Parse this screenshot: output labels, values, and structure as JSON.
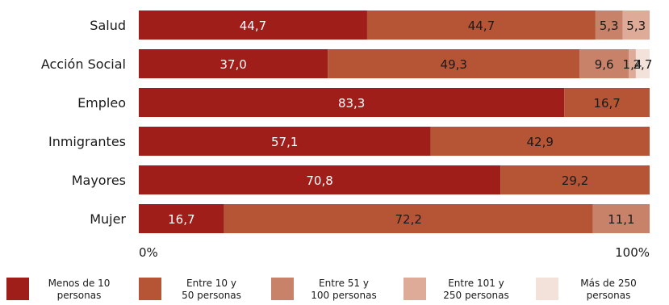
{
  "chart_data": {
    "type": "bar",
    "orientation": "horizontal",
    "stacked": true,
    "categories": [
      "Salud",
      "Acción Social",
      "Empleo",
      "Inmigrantes",
      "Mayores",
      "Mujer"
    ],
    "series": [
      {
        "name": "Menos de 10 personas",
        "color": "#a01e1a",
        "values": [
          44.7,
          37.0,
          83.3,
          57.1,
          70.8,
          16.7
        ]
      },
      {
        "name": "Entre 10 y 50 personas",
        "color": "#b55535",
        "values": [
          44.7,
          49.3,
          16.7,
          42.9,
          29.2,
          72.2
        ]
      },
      {
        "name": "Entre 51 y 100 personas",
        "color": "#c8826a",
        "values": [
          5.3,
          9.6,
          0,
          0,
          0,
          11.1
        ]
      },
      {
        "name": "Entre 101 y 250 personas",
        "color": "#ddab98",
        "values": [
          5.3,
          1.4,
          0,
          0,
          0,
          0
        ]
      },
      {
        "name": "Más de 250 personas",
        "color": "#f3e2d9",
        "values": [
          0,
          2.7,
          0,
          0,
          0,
          0
        ]
      }
    ],
    "value_labels": [
      [
        "44,7",
        "44,7",
        "5,3",
        "5,3",
        ""
      ],
      [
        "37,0",
        "49,3",
        "9,6",
        "1,4",
        "2,7"
      ],
      [
        "83,3",
        "16,7",
        "",
        "",
        ""
      ],
      [
        "57,1",
        "42,9",
        "",
        "",
        ""
      ],
      [
        "70,8",
        "29,2",
        "",
        "",
        ""
      ],
      [
        "16,7",
        "72,2",
        "11,1",
        "",
        ""
      ]
    ],
    "xlim": [
      0,
      100
    ],
    "x_ticks": [
      "0%",
      "100%"
    ],
    "legend_position": "bottom",
    "grid": false
  },
  "legend": [
    {
      "label": "Menos de 10\npersonas",
      "color": "#a01e1a"
    },
    {
      "label": "Entre 10 y\n50 personas",
      "color": "#b55535"
    },
    {
      "label": "Entre 51 y\n100 personas",
      "color": "#c8826a"
    },
    {
      "label": "Entre 101 y\n250 personas",
      "color": "#ddab98"
    },
    {
      "label": "Más de 250\npersonas",
      "color": "#f3e2d9"
    }
  ]
}
